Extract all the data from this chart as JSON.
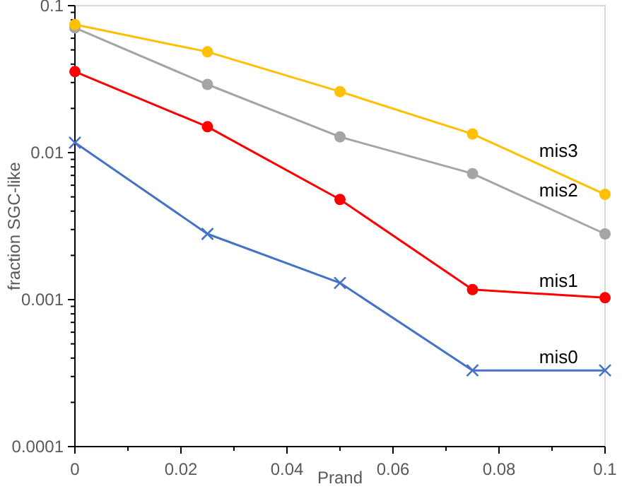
{
  "chart_data": {
    "type": "line",
    "xlabel": "Prand",
    "ylabel": "fraction SGC-like",
    "log": "y",
    "x": [
      0,
      0.025,
      0.05,
      0.075,
      0.1
    ],
    "xlim": [
      0,
      0.1
    ],
    "xticks": [
      0,
      0.02,
      0.04,
      0.06,
      0.08,
      0.1
    ],
    "ylim": [
      0.0001,
      0.1
    ],
    "yticks": [
      0.0001,
      0.001,
      0.01,
      0.1
    ],
    "grid": false,
    "line_style": "solid",
    "series": [
      {
        "name": "mis0",
        "color": "#4472c4",
        "marker": "cross",
        "values": [
          0.0117,
          0.0028,
          0.0013,
          0.00033,
          0.00033
        ]
      },
      {
        "name": "mis1",
        "color": "#ff0000",
        "marker": "circle",
        "values": [
          0.0356,
          0.015,
          0.0048,
          0.00117,
          0.00103
        ]
      },
      {
        "name": "mis2",
        "color": "#a5a5a5",
        "marker": "circle",
        "values": [
          0.0706,
          0.0291,
          0.0128,
          0.0072,
          0.0028
        ]
      },
      {
        "name": "mis3",
        "color": "#ffc000",
        "marker": "circle",
        "values": [
          0.0743,
          0.0485,
          0.026,
          0.0134,
          0.0052
        ]
      }
    ]
  }
}
